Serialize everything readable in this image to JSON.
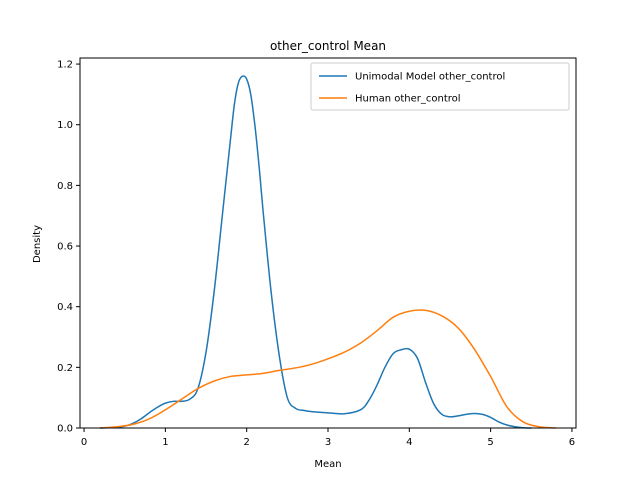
{
  "chart_data": {
    "type": "line",
    "title": "other_control Mean",
    "xlabel": "Mean",
    "ylabel": "Density",
    "xlim": [
      -0.05,
      6.05
    ],
    "ylim": [
      0,
      1.22
    ],
    "xticks": [
      0,
      1,
      2,
      3,
      4,
      5,
      6
    ],
    "xtick_labels": [
      "0",
      "1",
      "2",
      "3",
      "4",
      "5",
      "6"
    ],
    "yticks": [
      0.0,
      0.2,
      0.4,
      0.6,
      0.8,
      1.0,
      1.2
    ],
    "ytick_labels": [
      "0.0",
      "0.2",
      "0.4",
      "0.6",
      "0.8",
      "1.0",
      "1.2"
    ],
    "grid": false,
    "legend_position": "top-right",
    "series": [
      {
        "name": "Unimodal Model other_control",
        "color": "#1f77b4",
        "x": [
          0.2,
          0.4,
          0.5,
          0.6,
          0.7,
          0.8,
          0.9,
          1.0,
          1.1,
          1.2,
          1.3,
          1.4,
          1.5,
          1.6,
          1.7,
          1.8,
          1.85,
          1.9,
          1.95,
          2.0,
          2.05,
          2.1,
          2.15,
          2.2,
          2.3,
          2.4,
          2.5,
          2.6,
          2.7,
          2.8,
          3.0,
          3.2,
          3.4,
          3.5,
          3.6,
          3.7,
          3.8,
          3.9,
          4.0,
          4.1,
          4.2,
          4.3,
          4.4,
          4.5,
          4.6,
          4.7,
          4.8,
          4.9,
          5.0,
          5.1,
          5.2,
          5.3,
          5.4,
          5.5
        ],
        "y": [
          0.0,
          0.002,
          0.006,
          0.015,
          0.03,
          0.05,
          0.068,
          0.082,
          0.088,
          0.088,
          0.095,
          0.13,
          0.25,
          0.45,
          0.7,
          0.95,
          1.07,
          1.14,
          1.16,
          1.15,
          1.1,
          1.0,
          0.87,
          0.72,
          0.45,
          0.24,
          0.1,
          0.065,
          0.058,
          0.054,
          0.05,
          0.047,
          0.06,
          0.09,
          0.14,
          0.2,
          0.245,
          0.258,
          0.26,
          0.23,
          0.15,
          0.08,
          0.045,
          0.037,
          0.04,
          0.045,
          0.048,
          0.045,
          0.035,
          0.02,
          0.01,
          0.004,
          0.001,
          0.0
        ]
      },
      {
        "name": "Human other_control",
        "color": "#ff7f0e",
        "x": [
          0.2,
          0.4,
          0.6,
          0.8,
          1.0,
          1.2,
          1.4,
          1.6,
          1.8,
          2.0,
          2.2,
          2.4,
          2.6,
          2.8,
          3.0,
          3.2,
          3.4,
          3.6,
          3.8,
          4.0,
          4.2,
          4.4,
          4.6,
          4.8,
          5.0,
          5.2,
          5.4,
          5.6,
          5.8
        ],
        "y": [
          0.0,
          0.004,
          0.012,
          0.03,
          0.06,
          0.095,
          0.13,
          0.155,
          0.17,
          0.175,
          0.18,
          0.19,
          0.198,
          0.21,
          0.228,
          0.25,
          0.28,
          0.32,
          0.365,
          0.385,
          0.388,
          0.37,
          0.33,
          0.26,
          0.17,
          0.07,
          0.02,
          0.004,
          0.0
        ]
      }
    ]
  }
}
